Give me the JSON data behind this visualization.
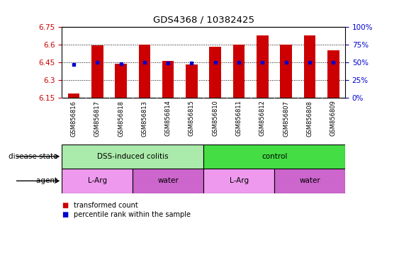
{
  "title": "GDS4368 / 10382425",
  "samples": [
    "GSM856816",
    "GSM856817",
    "GSM856818",
    "GSM856813",
    "GSM856814",
    "GSM856815",
    "GSM856810",
    "GSM856811",
    "GSM856812",
    "GSM856807",
    "GSM856808",
    "GSM856809"
  ],
  "red_values": [
    6.19,
    6.595,
    6.44,
    6.6,
    6.465,
    6.435,
    6.585,
    6.605,
    6.68,
    6.6,
    6.68,
    6.555
  ],
  "blue_values": [
    6.435,
    6.45,
    6.442,
    6.45,
    6.447,
    6.443,
    6.45,
    6.45,
    6.45,
    6.45,
    6.45,
    6.45
  ],
  "ylim_left": [
    6.15,
    6.75
  ],
  "yticks_left": [
    6.15,
    6.3,
    6.45,
    6.6,
    6.75
  ],
  "yticks_right": [
    0,
    25,
    50,
    75,
    100
  ],
  "bar_color": "#cc0000",
  "dot_color": "#0000cc",
  "bar_bottom": 6.15,
  "disease_state_groups": [
    {
      "label": "DSS-induced colitis",
      "start": 0,
      "end": 6,
      "color": "#aaeaaa"
    },
    {
      "label": "control",
      "start": 6,
      "end": 12,
      "color": "#44dd44"
    }
  ],
  "agent_groups": [
    {
      "label": "L-Arg",
      "start": 0,
      "end": 3,
      "color": "#ee99ee"
    },
    {
      "label": "water",
      "start": 3,
      "end": 6,
      "color": "#cc66cc"
    },
    {
      "label": "L-Arg",
      "start": 6,
      "end": 9,
      "color": "#ee99ee"
    },
    {
      "label": "water",
      "start": 9,
      "end": 12,
      "color": "#cc66cc"
    }
  ],
  "legend_red": "transformed count",
  "legend_blue": "percentile rank within the sample",
  "label_disease_state": "disease state",
  "label_agent": "agent",
  "bar_color_legend": "#cc0000",
  "dot_color_legend": "#0000cc",
  "tick_label_color_left": "#cc0000",
  "tick_label_color_right": "#0000cc",
  "xtick_bg": "#dddddd"
}
